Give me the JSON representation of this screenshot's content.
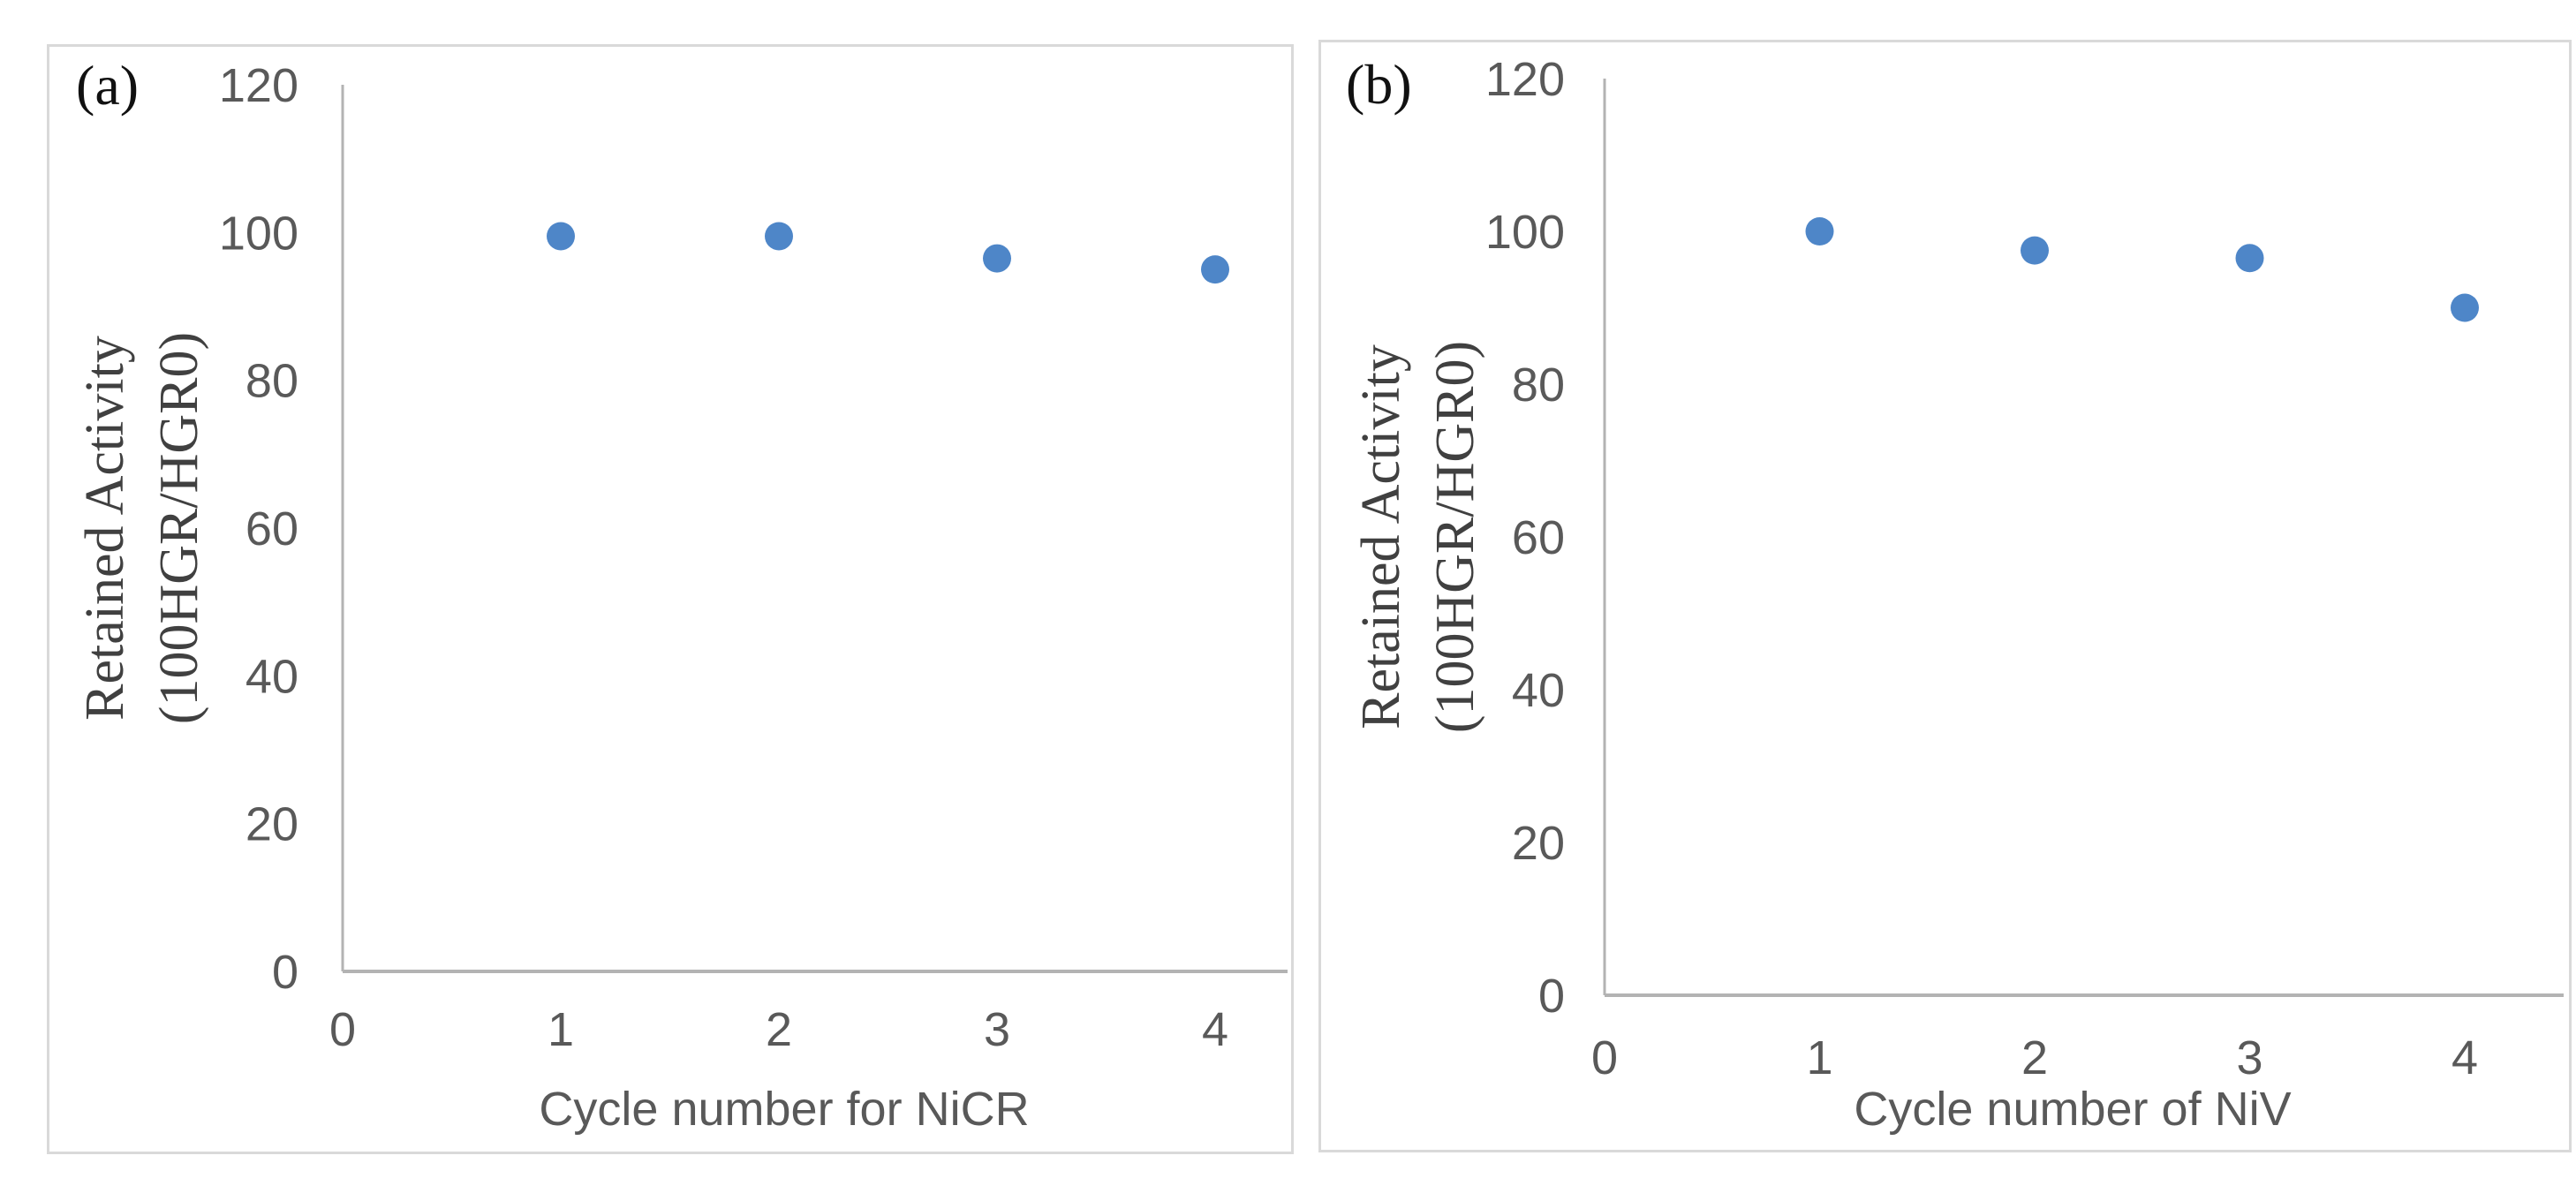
{
  "page": {
    "background_color": "#ffffff",
    "description": "Two-panel scatter figure of retained activity vs cycle number"
  },
  "panels": [
    {
      "tag": "(a)"
    },
    {
      "tag": "(b)"
    }
  ],
  "colors": {
    "marker": "#4E86C8",
    "axis_line": "#b3b3b3",
    "panel_border": "#d9d9d9",
    "tick_text": "#595959",
    "serif_text": "#404040"
  },
  "chart_data": [
    {
      "type": "scatter",
      "panel_tag": "(a)",
      "title": "",
      "xlabel": "Cycle number for NiCR",
      "ylabel_line1": "Retained Activity",
      "ylabel_line2": "(100HGR/HGR0)",
      "x": [
        1,
        2,
        3,
        4
      ],
      "y": [
        99.5,
        99.5,
        96.5,
        95
      ],
      "x_ticks": [
        0,
        1,
        2,
        3,
        4
      ],
      "y_ticks": [
        0,
        20,
        40,
        60,
        80,
        100,
        120
      ],
      "xlim": [
        0,
        4.35
      ],
      "ylim": [
        0,
        120
      ],
      "grid": false,
      "legend": "none",
      "marker_color": "#4E86C8"
    },
    {
      "type": "scatter",
      "panel_tag": "(b)",
      "title": "",
      "xlabel": "Cycle number of NiV",
      "ylabel_line1": "Retained Activity",
      "ylabel_line2": "(100HGR/HGR0)",
      "x": [
        1,
        2,
        3,
        4
      ],
      "y": [
        100,
        97.5,
        96.5,
        90
      ],
      "x_ticks": [
        0,
        1,
        2,
        3,
        4
      ],
      "y_ticks": [
        0,
        20,
        40,
        60,
        80,
        100,
        120
      ],
      "xlim": [
        0,
        4.45
      ],
      "ylim": [
        0,
        120
      ],
      "grid": false,
      "legend": "none",
      "marker_color": "#4E86C8"
    }
  ]
}
